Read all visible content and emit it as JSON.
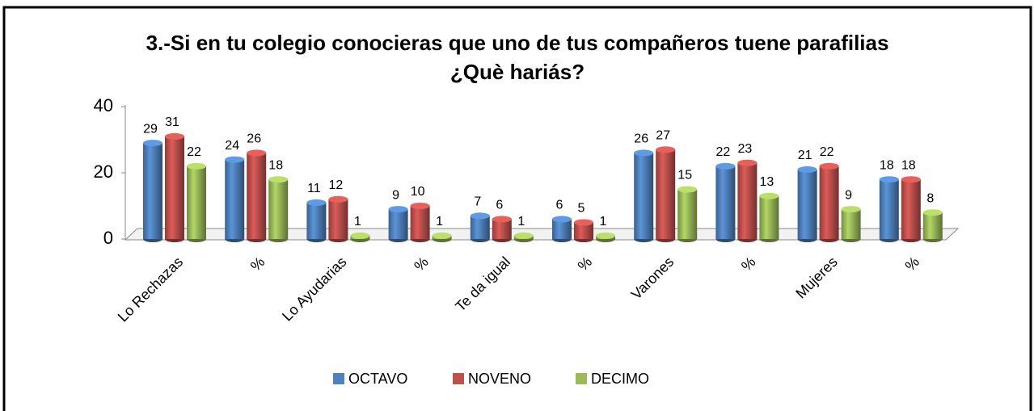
{
  "chart_data": {
    "type": "bar",
    "title": "3.-Si en tu colegio conocieras que uno de tus compañeros tuene parafilias",
    "subtitle": "¿Què hariás?",
    "categories": [
      "Lo Rechazas",
      "%",
      "Lo Ayudarias",
      "%",
      "Te da igual",
      "%",
      "Varones",
      "%",
      "Mujeres",
      "%"
    ],
    "series": [
      {
        "name": "OCTAVO",
        "color": "#4f81bd",
        "values": [
          29,
          24,
          11,
          9,
          7,
          6,
          26,
          22,
          21,
          18
        ]
      },
      {
        "name": "NOVENO",
        "color": "#c0504d",
        "values": [
          31,
          26,
          12,
          10,
          6,
          5,
          27,
          23,
          22,
          18
        ]
      },
      {
        "name": "DECIMO",
        "color": "#9bbb59",
        "values": [
          22,
          18,
          1,
          1,
          1,
          1,
          15,
          13,
          9,
          8
        ]
      }
    ],
    "ylim": [
      0,
      40
    ],
    "yticks": [
      0,
      20,
      40
    ],
    "legend": "bottom"
  }
}
